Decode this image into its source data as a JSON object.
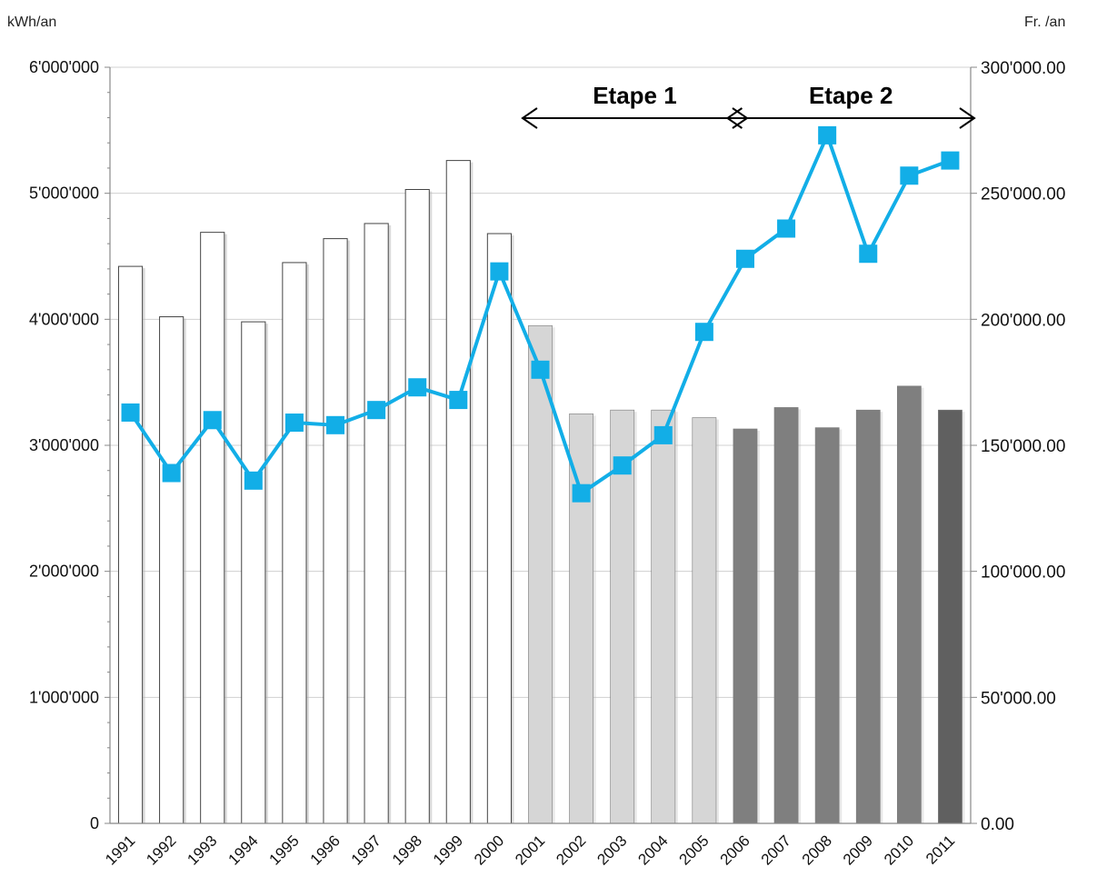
{
  "chart_data": {
    "type": "bar",
    "title": "",
    "categories": [
      "1991",
      "1992",
      "1993",
      "1994",
      "1995",
      "1996",
      "1997",
      "1998",
      "1999",
      "2000",
      "2001",
      "2002",
      "2003",
      "2004",
      "2005",
      "2006",
      "2007",
      "2008",
      "2009",
      "2010",
      "2011"
    ],
    "ylabel_left": "kWh/an",
    "ylabel_right": "Fr. /an",
    "ylim_left": [
      0,
      6000000
    ],
    "ylim_right": [
      0,
      300000
    ],
    "yticks_left": [
      "0",
      "1'000'000",
      "2'000'000",
      "3'000'000",
      "4'000'000",
      "5'000'000",
      "6'000'000"
    ],
    "yticks_right": [
      "0.00",
      "50'000.00",
      "100'000.00",
      "150'000.00",
      "200'000.00",
      "250'000.00",
      "300'000.00"
    ],
    "grid": true,
    "series": [
      {
        "type": "bar",
        "axis": "left",
        "values": [
          4420000,
          4020000,
          4690000,
          3980000,
          4450000,
          4640000,
          4760000,
          5030000,
          5260000,
          4680000,
          3950000,
          3250000,
          3280000,
          3280000,
          3220000,
          3130000,
          3300000,
          3140000,
          3280000,
          3470000,
          3280000
        ],
        "colors": [
          "#ffffff",
          "#ffffff",
          "#ffffff",
          "#ffffff",
          "#ffffff",
          "#ffffff",
          "#ffffff",
          "#ffffff",
          "#ffffff",
          "#ffffff",
          "#d6d6d6",
          "#d6d6d6",
          "#d6d6d6",
          "#d6d6d6",
          "#d6d6d6",
          "#7f7f7f",
          "#7f7f7f",
          "#7f7f7f",
          "#7f7f7f",
          "#7f7f7f",
          "#606060"
        ]
      },
      {
        "type": "line",
        "axis": "right",
        "color": "#12aee7",
        "values": [
          163000,
          139000,
          160000,
          136000,
          159000,
          158000,
          164000,
          173000,
          168000,
          219000,
          180000,
          131000,
          142000,
          154000,
          195000,
          224000,
          236000,
          273000,
          226000,
          257000,
          263000
        ]
      }
    ],
    "annotations": [
      {
        "label": "Etape 1",
        "from": "2001",
        "to": "2006"
      },
      {
        "label": "Etape 2",
        "from": "2006",
        "to": "2011"
      }
    ]
  }
}
